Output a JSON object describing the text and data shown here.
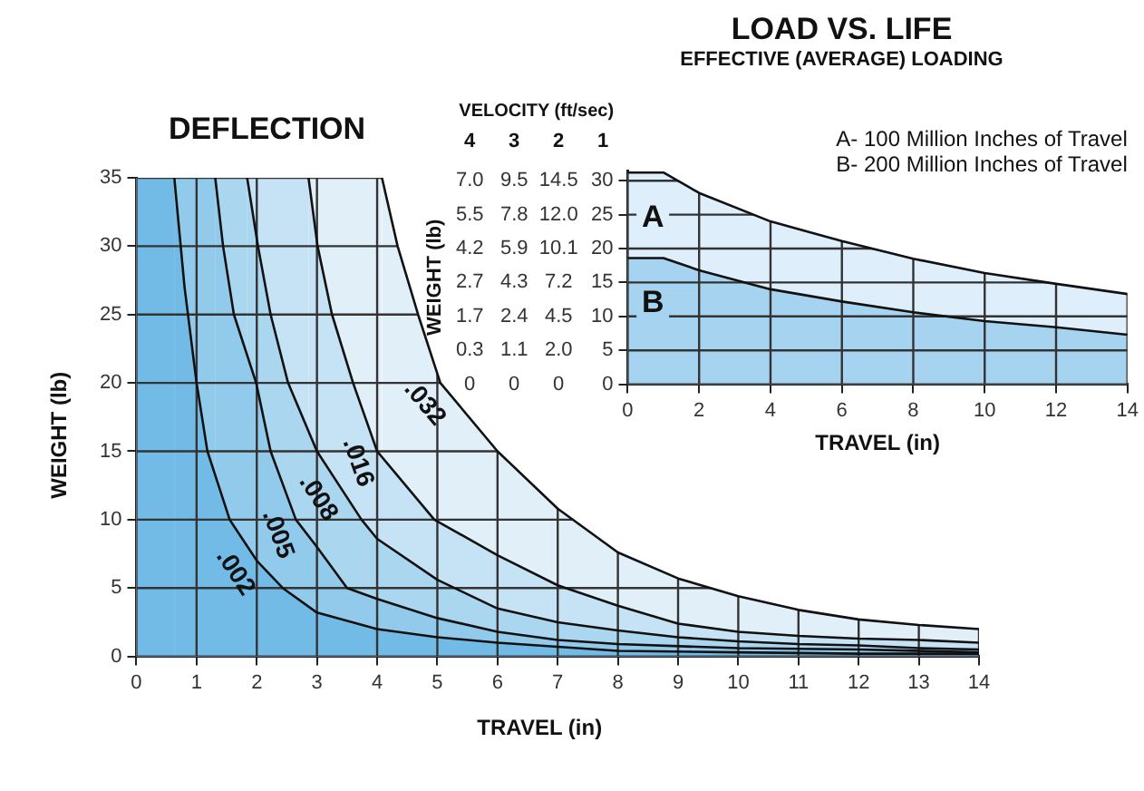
{
  "chart_data": [
    {
      "type": "area",
      "title": "DEFLECTION",
      "xlabel": "TRAVEL (in)",
      "ylabel": "WEIGHT (lb)",
      "xlim": [
        0,
        14
      ],
      "ylim": [
        0,
        35
      ],
      "xticks": [
        0,
        1,
        2,
        3,
        4,
        5,
        6,
        7,
        8,
        9,
        10,
        11,
        12,
        13,
        14
      ],
      "yticks": [
        0,
        5,
        10,
        15,
        20,
        25,
        30,
        35
      ],
      "grid": true,
      "series": [
        {
          "name": ".032",
          "color": "#e1eff9",
          "x": [
            0,
            4.08,
            4.34,
            4.68,
            5.05,
            6,
            7,
            8,
            9,
            10,
            11,
            12,
            13,
            14
          ],
          "values": [
            35,
            35,
            30,
            25,
            20,
            15,
            10.8,
            7.6,
            5.7,
            4.4,
            3.4,
            2.7,
            2.3,
            2.0
          ]
        },
        {
          "name": ".016",
          "color": "#c6e2f5",
          "x": [
            0,
            2.86,
            3.01,
            3.25,
            3.6,
            4.0,
            4.95,
            6,
            7,
            8,
            9,
            10,
            11,
            12,
            13,
            14
          ],
          "values": [
            35,
            35,
            30,
            25,
            20,
            15,
            10,
            7.4,
            5.2,
            3.7,
            2.4,
            1.8,
            1.5,
            1.3,
            1.2,
            1.0
          ]
        },
        {
          "name": ".008",
          "color": "#abd6f0",
          "x": [
            0,
            1.84,
            2.02,
            2.23,
            2.52,
            3.0,
            3.74,
            4,
            5,
            6,
            7,
            8,
            9,
            10,
            11,
            12,
            13,
            14
          ],
          "values": [
            35,
            35,
            30,
            25,
            20,
            15,
            10,
            8.6,
            5.6,
            3.5,
            2.5,
            1.9,
            1.4,
            1.1,
            0.9,
            0.8,
            0.6,
            0.5
          ]
        },
        {
          "name": ".005",
          "color": "#92caec",
          "x": [
            0,
            1.31,
            1.44,
            1.62,
            1.99,
            2.23,
            2.65,
            3,
            3.5,
            4,
            5,
            6,
            7,
            8,
            10,
            12,
            14
          ],
          "values": [
            35,
            35,
            30,
            25,
            20,
            15,
            10,
            8,
            5,
            4.2,
            2.8,
            1.8,
            1.2,
            0.9,
            0.6,
            0.5,
            0.3
          ]
        },
        {
          "name": ".002",
          "color": "#72bbe6",
          "x": [
            0,
            0.63,
            0.8,
            1.0,
            1.18,
            1.55,
            2.0,
            2.43,
            3,
            4,
            5,
            6,
            7,
            8,
            10,
            12,
            14
          ],
          "values": [
            35,
            35,
            27,
            20,
            15,
            10,
            7,
            5,
            3.2,
            2.0,
            1.4,
            1.0,
            0.7,
            0.4,
            0.3,
            0.2,
            0.2
          ]
        }
      ]
    },
    {
      "type": "area",
      "title": "LOAD VS. LIFE",
      "subtitle": "EFFECTIVE (AVERAGE) LOADING",
      "xlabel": "TRAVEL (in)",
      "ylabel": "WEIGHT (lb)",
      "x": [
        0,
        1,
        2,
        4,
        6,
        8,
        10,
        12,
        14
      ],
      "xlim": [
        0,
        14
      ],
      "xticks": [
        0,
        2,
        4,
        6,
        8,
        10,
        12,
        14
      ],
      "ylim": [
        0,
        31.5
      ],
      "yticks": [
        0,
        5,
        10,
        15,
        20,
        25,
        30
      ],
      "grid": true,
      "annotations": [
        "VELOCITY (ft/sec)",
        "4",
        "7.0",
        "5.5",
        "4.2",
        "2.7",
        "1.7",
        "0.3",
        "0",
        "3",
        "9.5",
        "7.8",
        "5.9",
        "4.3",
        "2.4",
        "1.1",
        "0",
        "2",
        "14.5",
        "12.0",
        "10.1",
        "7.2",
        "4.5",
        "2.0",
        "0",
        "1",
        "A- 100 Million Inches of Travel",
        "B- 200 Million Inches of Travel"
      ],
      "series": [
        {
          "name": "A",
          "color": "#deeefa",
          "values": [
            31.2,
            31.2,
            28.2,
            24.0,
            21.1,
            18.5,
            16.4,
            14.8,
            13.3
          ]
        },
        {
          "name": "B",
          "color": "#a6d3ef",
          "values": [
            18.6,
            18.6,
            16.8,
            14.0,
            12.2,
            10.6,
            9.3,
            8.4,
            7.3
          ]
        }
      ]
    }
  ]
}
